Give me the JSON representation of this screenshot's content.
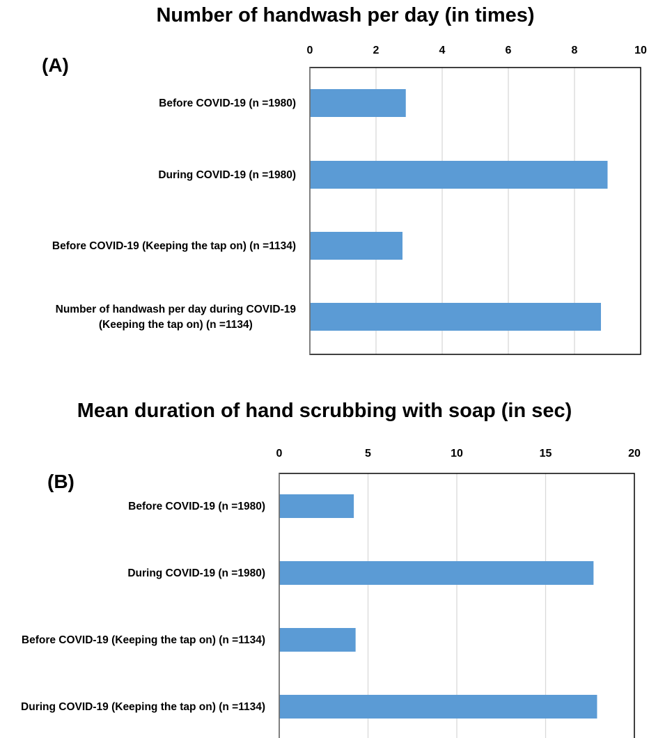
{
  "chart_data": [
    {
      "type": "bar",
      "orientation": "horizontal",
      "panel": "(A)",
      "title": "Number of handwash per day (in times)",
      "categories": [
        [
          "Before COVID-19 (n =1980)"
        ],
        [
          "During COVID-19 (n =1980)"
        ],
        [
          "Before COVID-19 (Keeping the tap on) (n =1134)"
        ],
        [
          "Number of handwash per day during COVID-19",
          "(Keeping the tap on) (n =1134)"
        ]
      ],
      "values": [
        2.9,
        9.0,
        2.8,
        8.8
      ],
      "xlim": [
        0,
        10
      ],
      "xticks": [
        0,
        2,
        4,
        6,
        8,
        10
      ],
      "axis_position": "top",
      "grid": true,
      "bar_color": "#5b9bd5"
    },
    {
      "type": "bar",
      "orientation": "horizontal",
      "panel": "(B)",
      "title": "Mean duration of hand scrubbing with soap  (in sec)",
      "categories": [
        [
          "Before COVID-19 (n =1980)"
        ],
        [
          "During COVID-19 (n =1980)"
        ],
        [
          "Before COVID-19 (Keeping the tap on) (n =1134)"
        ],
        [
          "During COVID-19 (Keeping the tap on) (n =1134)"
        ]
      ],
      "values": [
        4.2,
        17.7,
        4.3,
        17.9
      ],
      "xlim": [
        0,
        20
      ],
      "xticks": [
        0,
        5,
        10,
        15,
        20
      ],
      "axis_position": "top",
      "grid": true,
      "bar_color": "#5b9bd5"
    }
  ]
}
